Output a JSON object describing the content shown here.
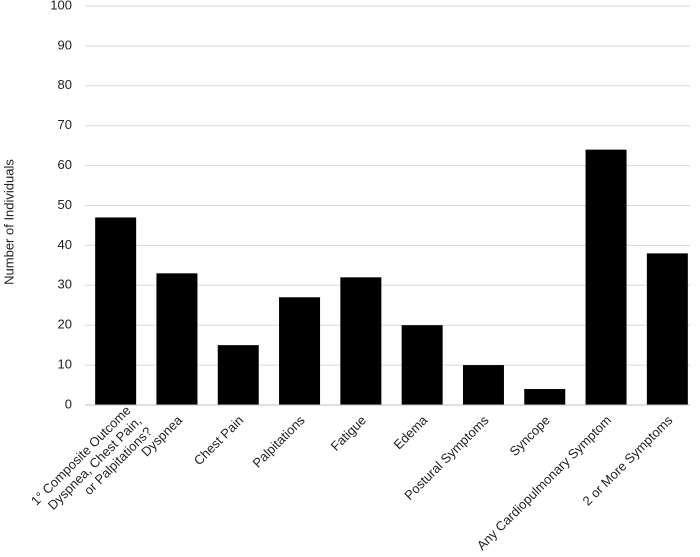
{
  "chart_data": {
    "type": "bar",
    "y_label": "Number of Individuals",
    "categories": [
      "1° Composite Outcome\nDyspnea, Chest Pain,\nor Palpitations?",
      "Dyspnea",
      "Chest Pain",
      "Palpitations",
      "Fatigue",
      "Edema",
      "Postural Symptoms",
      "Syncope",
      "Any Cardiopulmonary Symptom",
      "2 or More Symptoms"
    ],
    "values": [
      47,
      33,
      15,
      27,
      32,
      20,
      10,
      4,
      64,
      38
    ],
    "color": "#000000",
    "ylim": [
      0,
      100
    ],
    "yticks": [
      0,
      10,
      20,
      30,
      40,
      50,
      60,
      70,
      80,
      90,
      100
    ],
    "grid": true
  }
}
